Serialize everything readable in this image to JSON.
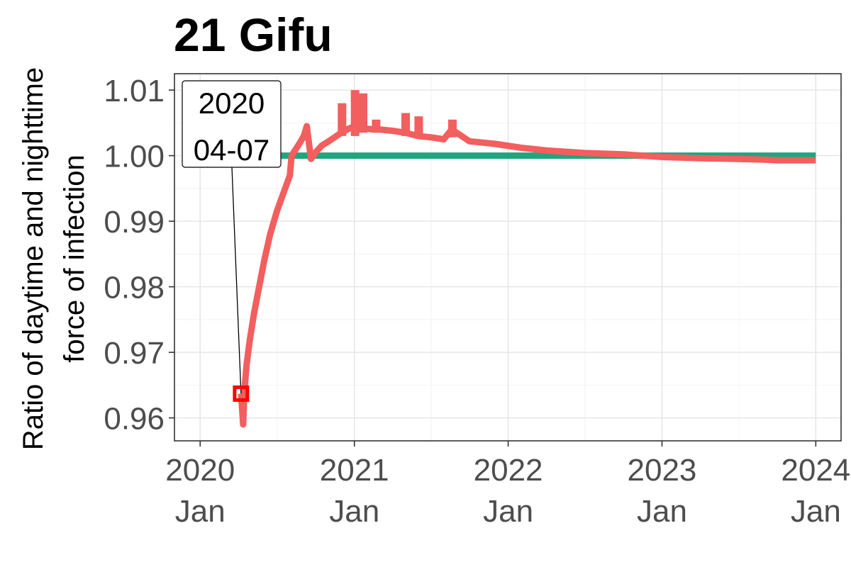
{
  "chart_data": {
    "type": "line",
    "title": "21 Gifu",
    "xlabel": "",
    "ylabel": "Ratio of daytime and nighttime force of infection",
    "ylabel_lines": [
      "Ratio of daytime and nighttime",
      "force of infection"
    ],
    "x_ticks": [
      {
        "line1": "2020",
        "line2": "Jan",
        "date": "2020-01-01"
      },
      {
        "line1": "2021",
        "line2": "Jan",
        "date": "2021-01-01"
      },
      {
        "line1": "2022",
        "line2": "Jan",
        "date": "2022-01-01"
      },
      {
        "line1": "2023",
        "line2": "Jan",
        "date": "2023-01-01"
      },
      {
        "line1": "2024",
        "line2": "Jan",
        "date": "2024-01-01"
      }
    ],
    "y_ticks": [
      "0.96",
      "0.97",
      "0.98",
      "0.99",
      "1.00",
      "1.01"
    ],
    "xlim": [
      "2019-11-01",
      "2024-03-01"
    ],
    "ylim": [
      0.9565,
      1.0125
    ],
    "grid": true,
    "legend": "none",
    "series": [
      {
        "color": "#21a57f",
        "x": [
          "2020-04-07",
          "2024-01-01"
        ],
        "y": [
          1.0,
          1.0
        ]
      },
      {
        "color": "#f35e5e",
        "x": [
          "2020-04-07",
          "2020-04-12",
          "2020-04-15",
          "2020-04-20",
          "2020-04-28",
          "2020-05-08",
          "2020-05-20",
          "2020-06-01",
          "2020-06-15",
          "2020-07-01",
          "2020-07-15",
          "2020-08-01",
          "2020-08-05",
          "2020-08-15",
          "2020-08-25",
          "2020-09-03",
          "2020-09-10",
          "2020-09-20",
          "2020-10-01",
          "2020-10-15",
          "2020-11-01",
          "2020-11-15",
          "2020-12-01",
          "2020-12-15",
          "2021-01-01",
          "2021-01-20",
          "2021-02-15",
          "2021-03-01",
          "2021-04-01",
          "2021-05-01",
          "2021-06-01",
          "2021-07-01",
          "2021-08-01",
          "2021-08-20",
          "2021-10-01",
          "2021-12-01",
          "2022-02-01",
          "2022-04-01",
          "2022-07-01",
          "2022-10-01",
          "2023-01-01",
          "2023-04-01",
          "2023-07-01",
          "2023-09-01",
          "2023-10-01",
          "2024-01-01"
        ],
        "y": [
          0.9637,
          0.959,
          0.964,
          0.968,
          0.972,
          0.976,
          0.98,
          0.984,
          0.988,
          0.9915,
          0.994,
          0.997,
          1.0,
          1.001,
          1.002,
          1.003,
          1.0045,
          0.9995,
          1.0005,
          1.0015,
          1.0022,
          1.0028,
          1.0035,
          1.004,
          1.0045,
          1.0042,
          1.004,
          1.004,
          1.0038,
          1.0035,
          1.003,
          1.0028,
          1.0025,
          1.004,
          1.0022,
          1.0018,
          1.0012,
          1.0008,
          1.0004,
          1.0002,
          0.9998,
          0.9996,
          0.9995,
          0.9994,
          0.9993,
          0.9993
        ],
        "spikes": [
          {
            "x": "2020-12-01",
            "low": 1.003,
            "high": 1.008
          },
          {
            "x": "2021-01-01",
            "low": 1.003,
            "high": 1.01
          },
          {
            "x": "2021-01-20",
            "low": 1.0035,
            "high": 1.0095
          },
          {
            "x": "2021-02-20",
            "low": 1.0035,
            "high": 1.0055
          },
          {
            "x": "2021-05-01",
            "low": 1.003,
            "high": 1.0065
          },
          {
            "x": "2021-06-01",
            "low": 1.0028,
            "high": 1.006
          },
          {
            "x": "2021-08-20",
            "low": 1.0028,
            "high": 1.0055
          }
        ]
      }
    ],
    "annotation": {
      "line1": "2020",
      "line2": "04-07",
      "x": "2020-04-07",
      "y": 0.9637,
      "marker_color": "#ff0000"
    }
  }
}
